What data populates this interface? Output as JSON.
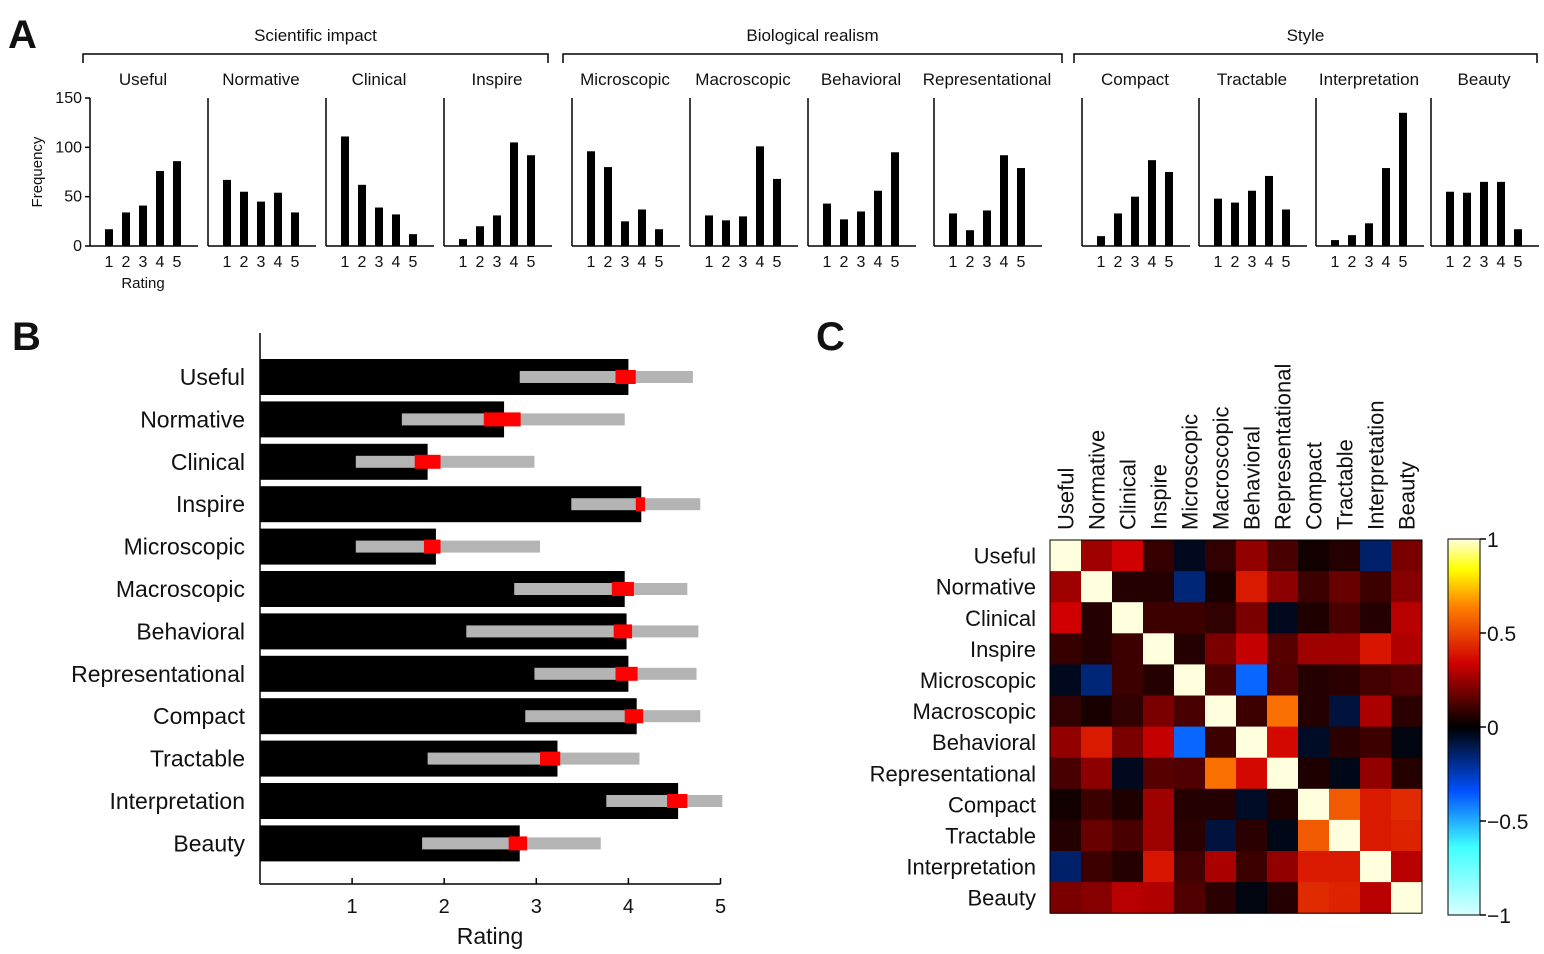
{
  "panel_labels": {
    "a": "A",
    "b": "B",
    "c": "C"
  },
  "chart_data": [
    {
      "type": "bar",
      "panel": "A",
      "groups": [
        {
          "label": "Scientific impact",
          "members": [
            "Useful",
            "Normative",
            "Clinical",
            "Inspire"
          ]
        },
        {
          "label": "Biological realism",
          "members": [
            "Microscopic",
            "Macroscopic",
            "Behavioral",
            "Representational"
          ]
        },
        {
          "label": "Style",
          "members": [
            "Compact",
            "Tractable",
            "Interpretation",
            "Beauty"
          ]
        }
      ],
      "categories": [
        "1",
        "2",
        "3",
        "4",
        "5"
      ],
      "ylabel": "Frequency",
      "xlabel": "Rating",
      "ylim": [
        0,
        150
      ],
      "yticks": [
        "0",
        "50",
        "100",
        "150"
      ],
      "series": [
        {
          "name": "Useful",
          "values": [
            17,
            34,
            41,
            76,
            86
          ]
        },
        {
          "name": "Normative",
          "values": [
            67,
            55,
            45,
            54,
            34
          ]
        },
        {
          "name": "Clinical",
          "values": [
            111,
            62,
            39,
            32,
            12
          ]
        },
        {
          "name": "Inspire",
          "values": [
            7,
            20,
            31,
            105,
            92
          ]
        },
        {
          "name": "Microscopic",
          "values": [
            96,
            80,
            25,
            37,
            17
          ]
        },
        {
          "name": "Macroscopic",
          "values": [
            31,
            26,
            30,
            101,
            68
          ]
        },
        {
          "name": "Behavioral",
          "values": [
            43,
            27,
            35,
            56,
            95
          ]
        },
        {
          "name": "Representational",
          "values": [
            33,
            16,
            36,
            92,
            79
          ]
        },
        {
          "name": "Compact",
          "values": [
            10,
            33,
            50,
            87,
            75
          ]
        },
        {
          "name": "Tractable",
          "values": [
            48,
            44,
            56,
            71,
            37
          ]
        },
        {
          "name": "Interpretation",
          "values": [
            6,
            11,
            23,
            79,
            135
          ]
        },
        {
          "name": "Beauty",
          "values": [
            55,
            54,
            65,
            65,
            17
          ]
        }
      ]
    },
    {
      "type": "bar",
      "panel": "B",
      "orientation": "horizontal",
      "xlabel": "Rating",
      "xlim": [
        0,
        5
      ],
      "xticks": [
        "1",
        "2",
        "3",
        "4",
        "5"
      ],
      "categories": [
        "Useful",
        "Normative",
        "Clinical",
        "Inspire",
        "Microscopic",
        "Macroscopic",
        "Behavioral",
        "Representational",
        "Compact",
        "Tractable",
        "Interpretation",
        "Beauty"
      ],
      "mean": [
        4.0,
        2.65,
        1.82,
        4.14,
        1.91,
        3.96,
        3.98,
        4.0,
        4.09,
        3.23,
        4.54,
        2.82
      ],
      "ci_red": [
        [
          3.86,
          4.08
        ],
        [
          2.43,
          2.83
        ],
        [
          1.68,
          1.96
        ],
        [
          4.08,
          4.18
        ],
        [
          1.78,
          1.96
        ],
        [
          3.82,
          4.06
        ],
        [
          3.84,
          4.04
        ],
        [
          3.86,
          4.1
        ],
        [
          3.96,
          4.16
        ],
        [
          3.04,
          3.26
        ],
        [
          4.42,
          4.64
        ],
        [
          2.7,
          2.9
        ]
      ],
      "range_grey": [
        [
          2.82,
          4.7
        ],
        [
          1.54,
          3.96
        ],
        [
          1.04,
          2.98
        ],
        [
          3.38,
          4.78
        ],
        [
          1.04,
          3.04
        ],
        [
          2.76,
          4.64
        ],
        [
          2.24,
          4.76
        ],
        [
          2.98,
          4.74
        ],
        [
          2.88,
          4.78
        ],
        [
          1.82,
          4.12
        ],
        [
          3.76,
          5.02
        ],
        [
          1.76,
          3.7
        ]
      ]
    },
    {
      "type": "heatmap",
      "panel": "C",
      "labels": [
        "Useful",
        "Normative",
        "Clinical",
        "Inspire",
        "Microscopic",
        "Macroscopic",
        "Behavioral",
        "Representational",
        "Compact",
        "Tractable",
        "Interpretation",
        "Beauty"
      ],
      "zlim": [
        -1,
        1
      ],
      "colorbar_ticks": [
        "1",
        "0.5",
        "0",
        "−0.5",
        "−1"
      ],
      "matrix": [
        [
          1,
          0.26,
          0.34,
          0.09,
          -0.04,
          0.08,
          0.24,
          0.12,
          0.03,
          0.06,
          -0.14,
          0.2
        ],
        [
          0.26,
          1,
          0.06,
          0.06,
          -0.16,
          0.04,
          0.4,
          0.23,
          0.1,
          0.17,
          0.1,
          0.22
        ],
        [
          0.34,
          0.06,
          1,
          0.1,
          0.1,
          0.08,
          0.2,
          -0.04,
          0.05,
          0.12,
          0.06,
          0.3
        ],
        [
          0.09,
          0.06,
          0.1,
          1,
          0.06,
          0.2,
          0.32,
          0.14,
          0.26,
          0.26,
          0.39,
          0.29
        ],
        [
          -0.04,
          -0.16,
          0.1,
          0.06,
          1,
          0.12,
          -0.38,
          0.13,
          0.06,
          0.07,
          0.11,
          0.13
        ],
        [
          0.08,
          0.04,
          0.08,
          0.2,
          0.12,
          1,
          0.1,
          0.6,
          0.06,
          -0.08,
          0.28,
          0.07
        ],
        [
          0.24,
          0.4,
          0.2,
          0.32,
          -0.38,
          0.1,
          1,
          0.36,
          -0.05,
          0.07,
          0.1,
          -0.02
        ],
        [
          0.12,
          0.23,
          -0.04,
          0.14,
          0.13,
          0.6,
          0.36,
          1,
          0.05,
          -0.03,
          0.24,
          0.06
        ],
        [
          0.03,
          0.1,
          0.05,
          0.26,
          0.06,
          0.06,
          -0.05,
          0.05,
          1,
          0.55,
          0.4,
          0.44
        ],
        [
          0.06,
          0.17,
          0.12,
          0.26,
          0.07,
          -0.08,
          0.07,
          -0.03,
          0.55,
          1,
          0.4,
          0.42
        ],
        [
          -0.14,
          0.1,
          0.06,
          0.39,
          0.11,
          0.28,
          0.1,
          0.24,
          0.4,
          0.4,
          1,
          0.3
        ],
        [
          0.2,
          0.22,
          0.3,
          0.29,
          0.13,
          0.07,
          -0.02,
          0.06,
          0.44,
          0.42,
          0.3,
          1
        ]
      ]
    }
  ]
}
